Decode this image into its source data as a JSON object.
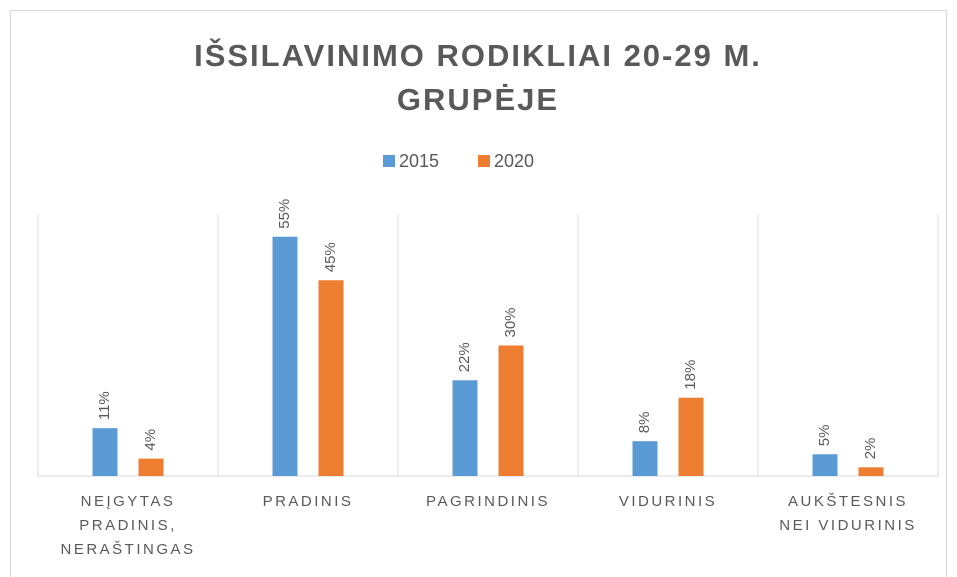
{
  "chart_data": {
    "type": "bar",
    "title": "IŠSILAVINIMO RODIKLIAI 20-29 M. GRUPĖJE",
    "categories": [
      "NEĮGYTAS PRADINIS, NERAŠTINGAS",
      "PRADINIS",
      "PAGRINDINIS",
      "VIDURINIS",
      "AUKŠTESNIS NEI VIDURINIS"
    ],
    "series": [
      {
        "name": "2015",
        "color": "#5b9bd5",
        "values": [
          11,
          55,
          22,
          8,
          5
        ],
        "value_labels": [
          "11%",
          "55%",
          "22%",
          "8%",
          "5%"
        ]
      },
      {
        "name": "2020",
        "color": "#ed7d31",
        "values": [
          4,
          45,
          30,
          18,
          2
        ],
        "value_labels": [
          "4%",
          "45%",
          "30%",
          "18%",
          "2%"
        ]
      }
    ],
    "ylim": [
      0,
      60
    ],
    "legend": "top"
  }
}
